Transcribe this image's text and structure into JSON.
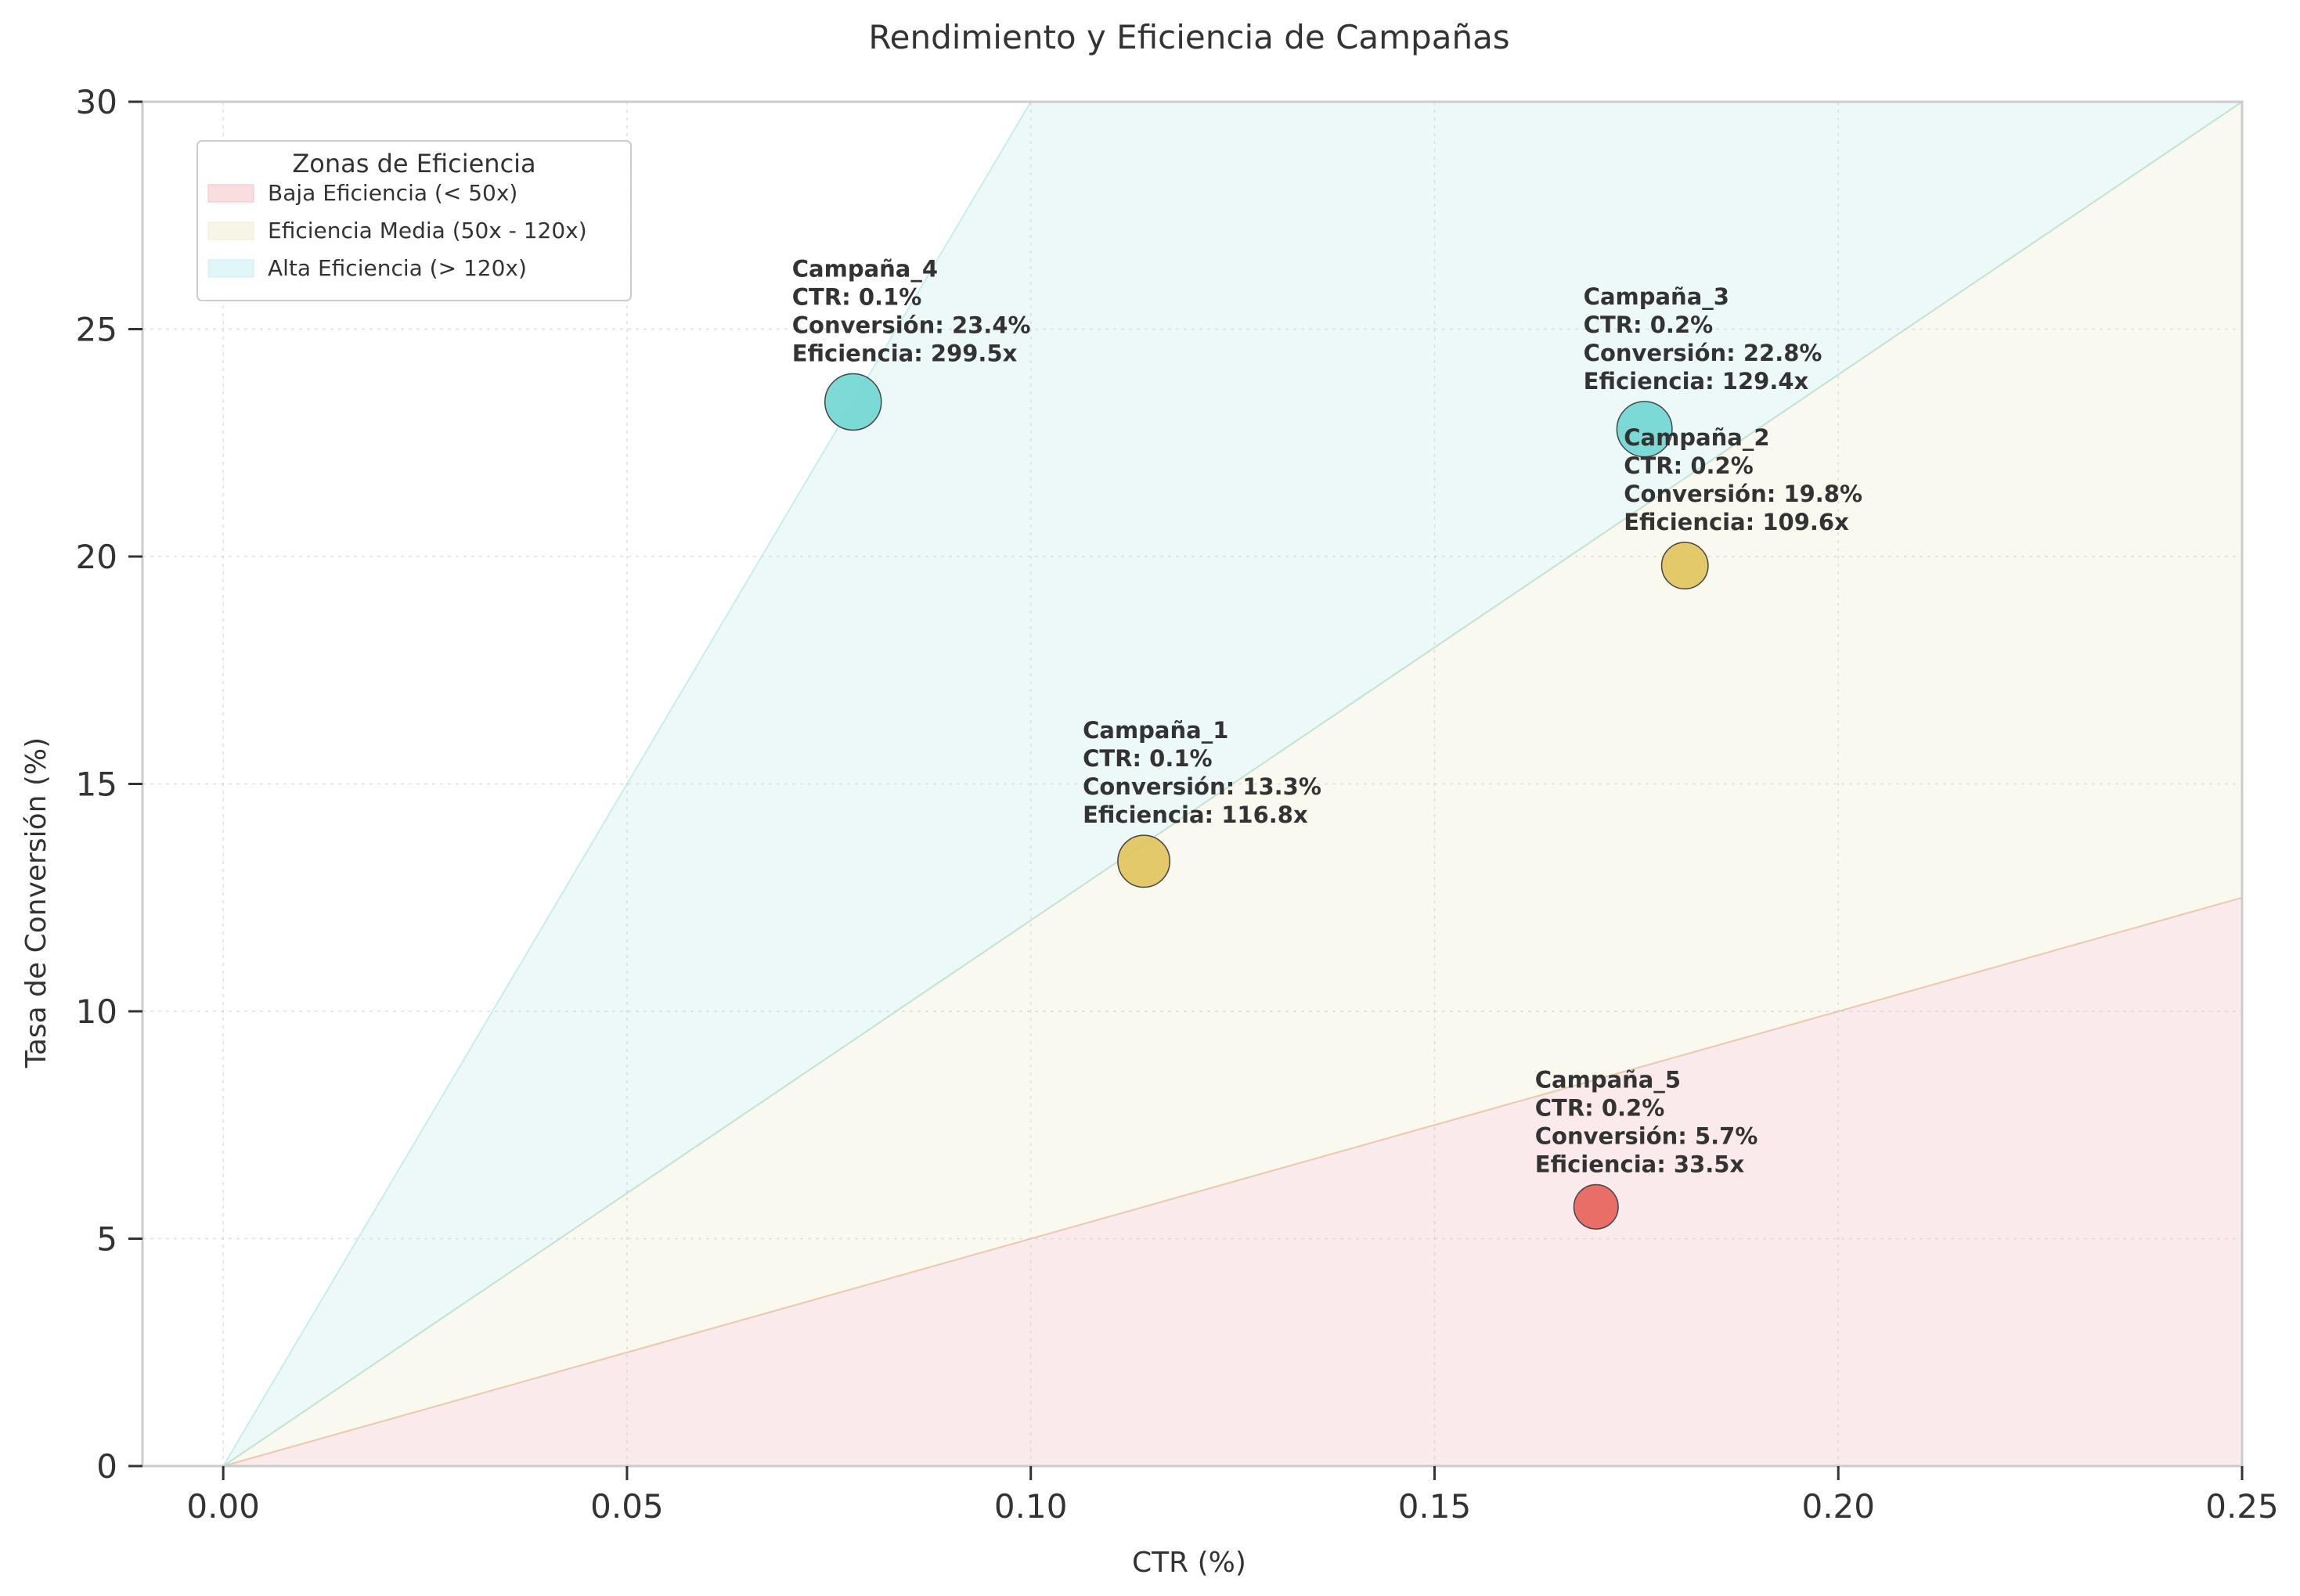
{
  "chart_data": {
    "type": "scatter",
    "title": "Rendimiento y Eficiencia de Campañas",
    "xlabel": "CTR (%)",
    "ylabel": "Tasa de Conversión (%)",
    "xlim": [
      -0.01,
      0.25
    ],
    "ylim": [
      0,
      30
    ],
    "xticks": [
      "0.00",
      "0.05",
      "0.10",
      "0.15",
      "0.20",
      "0.25"
    ],
    "xtick_values": [
      0,
      0.05,
      0.1,
      0.15,
      0.2,
      0.25
    ],
    "yticks": [
      "0",
      "5",
      "10",
      "15",
      "20",
      "25",
      "30"
    ],
    "ytick_values": [
      0,
      5,
      10,
      15,
      20,
      25,
      30
    ],
    "grid": true,
    "legend": {
      "title": "Zonas de Eficiencia",
      "placement": "top-left",
      "entries": [
        {
          "label": "Baja Eficiencia (< 50x)",
          "color": "#f4c2c4"
        },
        {
          "label": "Eficiencia Media (50x - 120x)",
          "color": "#f1edd2"
        },
        {
          "label": "Alta Eficiencia (> 120x)",
          "color": "#c9eeee"
        }
      ]
    },
    "zones": [
      {
        "name": "Baja Eficiencia (< 50x)",
        "slope_low": 0,
        "slope_high": 50,
        "color": "#e57a80"
      },
      {
        "name": "Eficiencia Media (50x - 120x)",
        "slope_low": 50,
        "slope_high": 120,
        "color": "#e3da9e"
      },
      {
        "name": "Alta Eficiencia (> 120x)",
        "slope_low": 120,
        "slope_high": 300,
        "color": "#8fdcdc"
      }
    ],
    "points": [
      {
        "name": "Campaña_1",
        "x": 0.114,
        "y": 13.3,
        "efficiency": 116.8,
        "color": "#e0c35a",
        "size_rel": 0.8,
        "label_lines": [
          "Campaña_1",
          "CTR: 0.1%",
          "Conversión: 13.3%",
          "Eficiencia: 116.8x"
        ]
      },
      {
        "name": "Campaña_2",
        "x": 0.181,
        "y": 19.8,
        "efficiency": 109.6,
        "color": "#e0c35a",
        "size_rel": 0.55,
        "label_lines": [
          "Campaña_2",
          "CTR: 0.2%",
          "Conversión: 19.8%",
          "Eficiencia: 109.6x"
        ]
      },
      {
        "name": "Campaña_3",
        "x": 0.176,
        "y": 22.8,
        "efficiency": 129.4,
        "color": "#6fd6d2",
        "size_rel": 0.95,
        "label_lines": [
          "Campaña_3",
          "CTR: 0.2%",
          "Conversión: 22.8%",
          "Eficiencia: 129.4x"
        ]
      },
      {
        "name": "Campaña_4",
        "x": 0.078,
        "y": 23.4,
        "efficiency": 299.5,
        "color": "#6fd6d2",
        "size_rel": 1.0,
        "label_lines": [
          "Campaña_4",
          "CTR: 0.1%",
          "Conversión: 23.4%",
          "Eficiencia: 299.5x"
        ]
      },
      {
        "name": "Campaña_5",
        "x": 0.17,
        "y": 5.7,
        "efficiency": 33.5,
        "color": "#e8605a",
        "size_rel": 0.45,
        "label_lines": [
          "Campaña_5",
          "CTR: 0.2%",
          "Conversión: 5.7%",
          "Eficiencia: 33.5x"
        ]
      }
    ]
  }
}
